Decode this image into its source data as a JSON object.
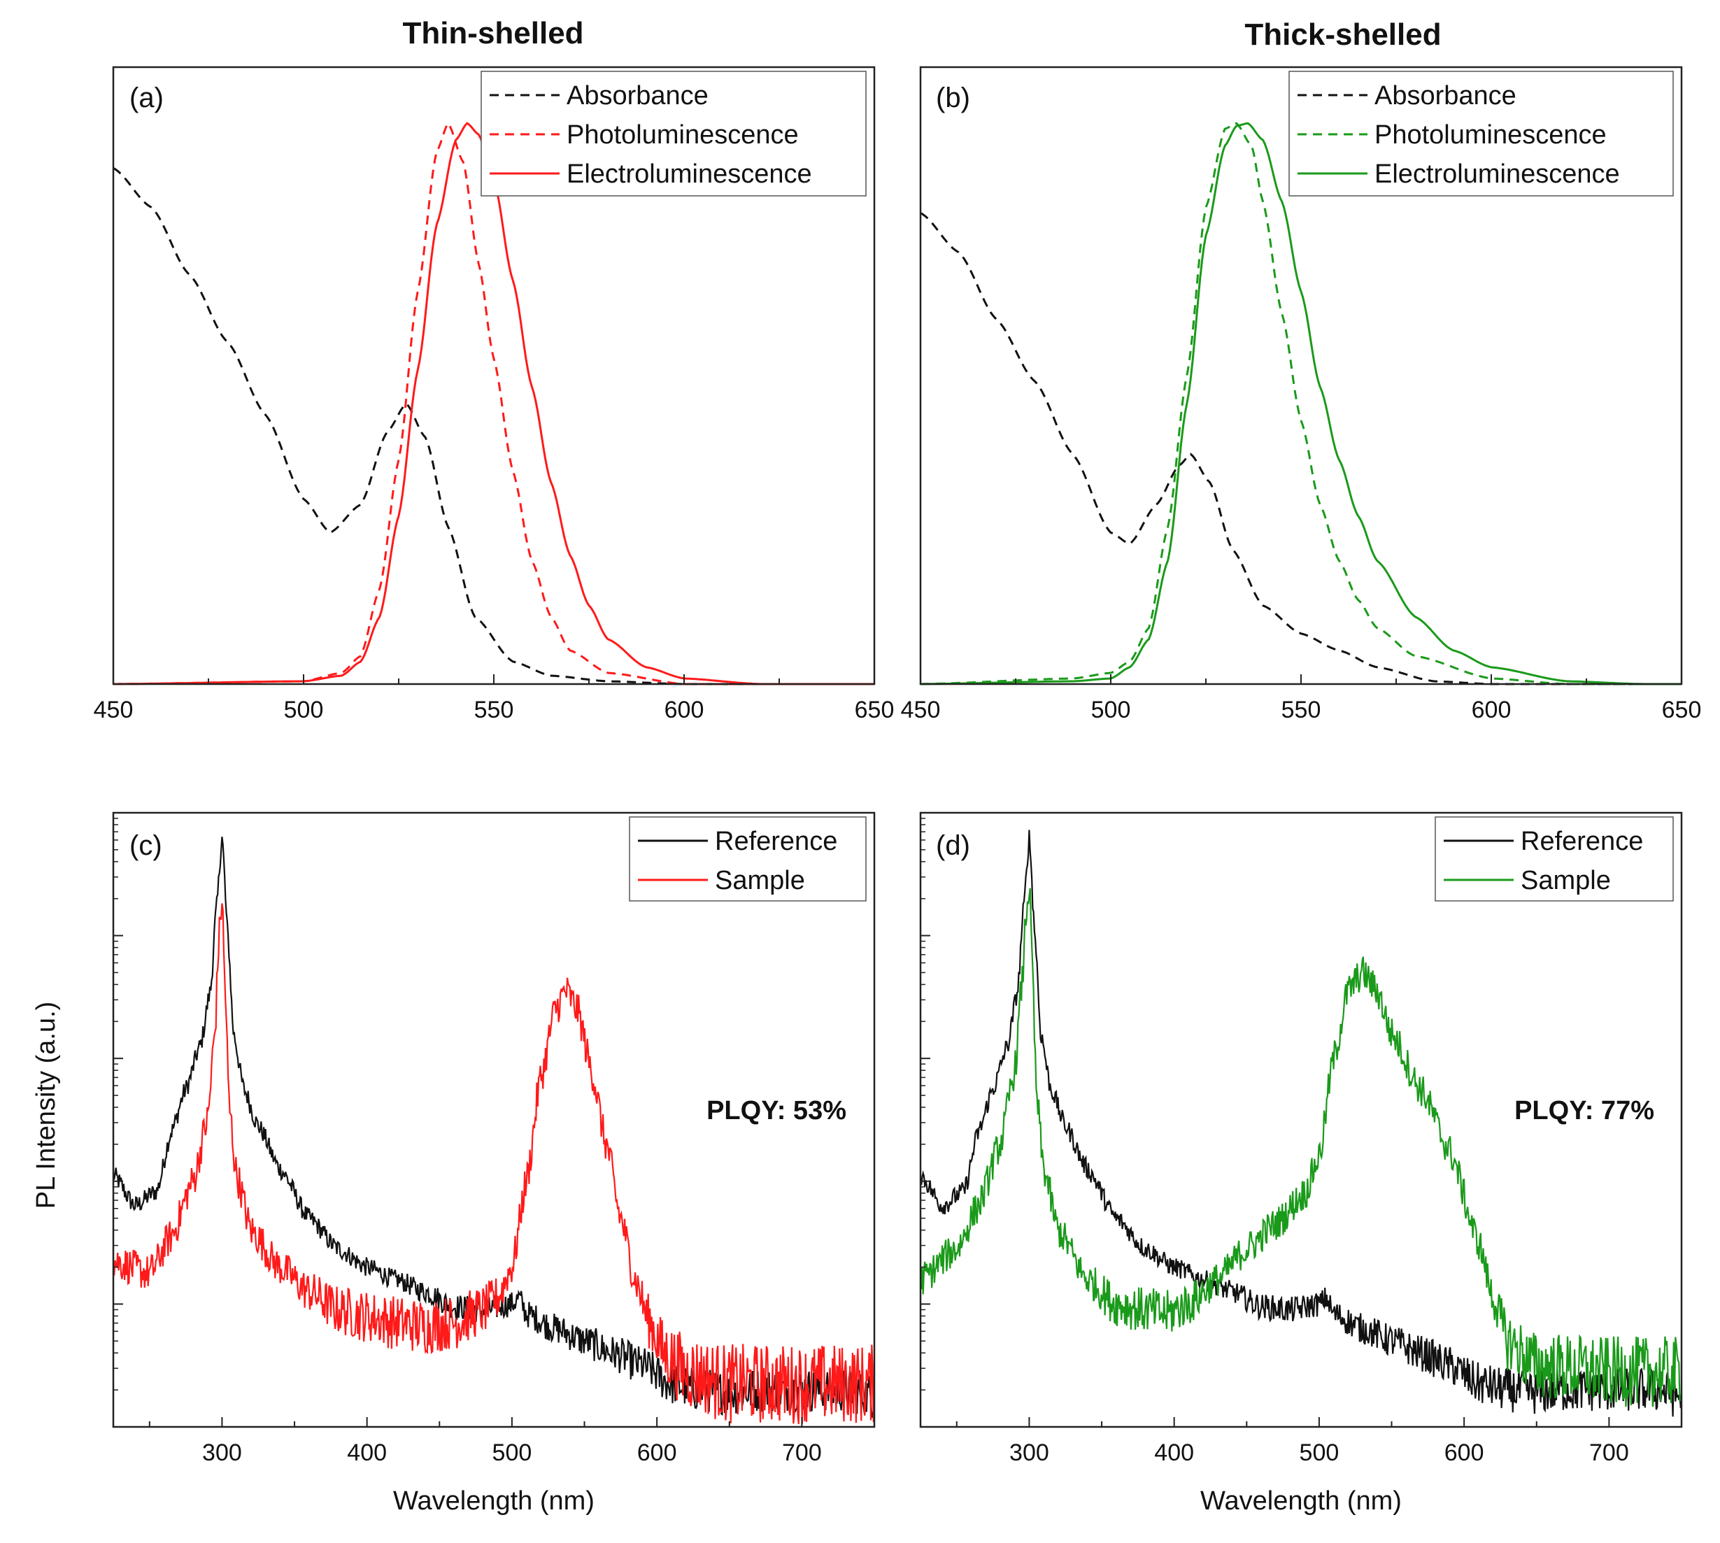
{
  "column_titles": [
    "Thin-shelled",
    "Thick-shelled"
  ],
  "y_axis_label": "PL Intensity (a.u.)",
  "colors": {
    "thin": "#ff1a1a",
    "thick": "#1a9a1a",
    "black": "#111111"
  },
  "chart_data": [
    {
      "panel": "(a)",
      "type": "line",
      "title": "Thin-shelled",
      "xlabel": "",
      "ylabel": "",
      "xlim": [
        450,
        650
      ],
      "ylim": [
        0,
        1.1
      ],
      "xticks": [
        450,
        500,
        550,
        600,
        650
      ],
      "xtick_labels": [
        "450",
        "500",
        "550",
        "600",
        "650"
      ],
      "legend": [
        "Absorbance",
        "Photoluminescence",
        "Electroluminescence"
      ],
      "series": [
        {
          "name": "Absorbance",
          "style": "dashed",
          "color": "#111111",
          "x": [
            450,
            460,
            470,
            480,
            490,
            500,
            507,
            515,
            522,
            527,
            532,
            538,
            545,
            555,
            565,
            580,
            600,
            620
          ],
          "y": [
            0.92,
            0.85,
            0.73,
            0.61,
            0.48,
            0.33,
            0.27,
            0.32,
            0.45,
            0.5,
            0.44,
            0.28,
            0.12,
            0.04,
            0.015,
            0.005,
            0.0,
            0.0
          ]
        },
        {
          "name": "Photoluminescence",
          "style": "dashed",
          "color": "#ff1a1a",
          "x": [
            450,
            500,
            510,
            515,
            520,
            525,
            530,
            535,
            538,
            542,
            546,
            550,
            555,
            560,
            565,
            570,
            580,
            600,
            620
          ],
          "y": [
            0.0,
            0.005,
            0.02,
            0.05,
            0.17,
            0.4,
            0.7,
            0.95,
            1.0,
            0.93,
            0.75,
            0.58,
            0.38,
            0.22,
            0.12,
            0.06,
            0.02,
            0.0,
            0.0
          ]
        },
        {
          "name": "Electroluminescence",
          "style": "solid",
          "color": "#ff1a1a",
          "x": [
            450,
            500,
            510,
            515,
            520,
            525,
            530,
            535,
            540,
            543,
            546,
            550,
            555,
            560,
            565,
            570,
            575,
            580,
            590,
            600,
            620
          ],
          "y": [
            0.0,
            0.005,
            0.015,
            0.04,
            0.12,
            0.3,
            0.56,
            0.82,
            0.97,
            1.0,
            0.98,
            0.9,
            0.72,
            0.53,
            0.36,
            0.23,
            0.14,
            0.08,
            0.03,
            0.01,
            0.0
          ]
        }
      ]
    },
    {
      "panel": "(b)",
      "type": "line",
      "title": "Thick-shelled",
      "xlabel": "",
      "ylabel": "",
      "xlim": [
        450,
        650
      ],
      "ylim": [
        0,
        1.1
      ],
      "xticks": [
        450,
        500,
        550,
        600,
        650
      ],
      "xtick_labels": [
        "450",
        "500",
        "550",
        "600",
        "650"
      ],
      "legend": [
        "Absorbance",
        "Photoluminescence",
        "Electroluminescence"
      ],
      "series": [
        {
          "name": "Absorbance",
          "style": "dashed",
          "color": "#111111",
          "x": [
            450,
            460,
            470,
            480,
            490,
            500,
            505,
            512,
            518,
            521,
            526,
            532,
            540,
            550,
            560,
            570,
            585,
            600
          ],
          "y": [
            0.84,
            0.77,
            0.65,
            0.54,
            0.41,
            0.27,
            0.25,
            0.32,
            0.39,
            0.41,
            0.36,
            0.24,
            0.14,
            0.09,
            0.06,
            0.03,
            0.005,
            0.0
          ]
        },
        {
          "name": "Photoluminescence",
          "style": "dashed",
          "color": "#1a9a1a",
          "x": [
            450,
            490,
            500,
            505,
            510,
            515,
            520,
            525,
            530,
            533,
            537,
            540,
            545,
            550,
            555,
            560,
            565,
            570,
            580,
            600,
            620
          ],
          "y": [
            0.0,
            0.01,
            0.02,
            0.04,
            0.1,
            0.28,
            0.55,
            0.85,
            0.99,
            1.0,
            0.96,
            0.86,
            0.66,
            0.47,
            0.32,
            0.22,
            0.15,
            0.1,
            0.05,
            0.01,
            0.0
          ]
        },
        {
          "name": "Electroluminescence",
          "style": "solid",
          "color": "#1a9a1a",
          "x": [
            450,
            490,
            500,
            505,
            510,
            515,
            520,
            525,
            530,
            533,
            536,
            540,
            545,
            550,
            555,
            560,
            565,
            570,
            580,
            590,
            600,
            620,
            640
          ],
          "y": [
            0.0,
            0.005,
            0.01,
            0.03,
            0.08,
            0.22,
            0.5,
            0.8,
            0.96,
            0.995,
            1.0,
            0.97,
            0.86,
            0.7,
            0.53,
            0.4,
            0.3,
            0.22,
            0.12,
            0.06,
            0.03,
            0.005,
            0.0
          ]
        }
      ]
    },
    {
      "panel": "(c)",
      "type": "line",
      "title": "",
      "xlabel": "Wavelength (nm)",
      "ylabel": "PL Intensity (a.u.)",
      "yscale": "log",
      "xlim": [
        225,
        750
      ],
      "ylim_log10": [
        0,
        5
      ],
      "xticks": [
        300,
        400,
        500,
        600,
        700
      ],
      "xtick_labels": [
        "300",
        "400",
        "500",
        "600",
        "700"
      ],
      "legend": [
        "Reference",
        "Sample"
      ],
      "annotation": "PLQY: 53%",
      "series": [
        {
          "name": "Reference",
          "style": "solid",
          "color": "#111111",
          "noise": 0.08,
          "x": [
            225,
            240,
            255,
            265,
            275,
            285,
            292,
            296,
            300,
            304,
            308,
            315,
            325,
            340,
            360,
            380,
            400,
            420,
            440,
            460,
            480,
            500,
            505,
            510,
            530,
            550,
            570,
            590,
            610,
            630,
            650,
            670,
            700,
            730,
            750
          ],
          "y": [
            2.05,
            1.8,
            1.92,
            2.4,
            2.75,
            3.1,
            3.55,
            4.2,
            4.8,
            4.0,
            3.2,
            2.75,
            2.45,
            2.1,
            1.7,
            1.45,
            1.3,
            1.2,
            1.1,
            0.98,
            0.95,
            1.0,
            1.05,
            0.92,
            0.8,
            0.7,
            0.6,
            0.5,
            0.35,
            0.3,
            0.28,
            0.3,
            0.3,
            0.3,
            0.25
          ]
        },
        {
          "name": "Sample",
          "style": "solid",
          "color": "#ff1a1a",
          "noise": 0.15,
          "x": [
            225,
            250,
            265,
            280,
            290,
            295,
            298,
            300,
            302,
            305,
            310,
            320,
            340,
            360,
            380,
            400,
            420,
            440,
            460,
            480,
            490,
            500,
            510,
            520,
            530,
            537,
            545,
            555,
            565,
            575,
            585,
            595,
            605,
            620,
            650,
            700,
            750
          ],
          "y": [
            1.35,
            1.25,
            1.55,
            2.0,
            2.5,
            3.2,
            4.0,
            4.3,
            3.6,
            2.6,
            2.05,
            1.6,
            1.3,
            1.1,
            0.95,
            0.9,
            0.85,
            0.82,
            0.85,
            0.95,
            1.05,
            1.3,
            2.0,
            2.85,
            3.4,
            3.55,
            3.4,
            2.9,
            2.3,
            1.7,
            1.2,
            0.85,
            0.6,
            0.45,
            0.35,
            0.35,
            0.35
          ]
        }
      ]
    },
    {
      "panel": "(d)",
      "type": "line",
      "title": "",
      "xlabel": "Wavelength (nm)",
      "ylabel": "",
      "yscale": "log",
      "xlim": [
        225,
        750
      ],
      "ylim_log10": [
        0,
        5
      ],
      "xticks": [
        300,
        400,
        500,
        600,
        700
      ],
      "xtick_labels": [
        "300",
        "400",
        "500",
        "600",
        "700"
      ],
      "legend": [
        "Reference",
        "Sample"
      ],
      "annotation": "PLQY: 77%",
      "series": [
        {
          "name": "Reference",
          "style": "solid",
          "color": "#111111",
          "noise": 0.08,
          "x": [
            225,
            240,
            255,
            265,
            275,
            285,
            292,
            296,
            300,
            304,
            308,
            315,
            325,
            340,
            360,
            380,
            400,
            420,
            440,
            460,
            480,
            500,
            505,
            510,
            530,
            550,
            570,
            590,
            610,
            630,
            650,
            670,
            700,
            730,
            750
          ],
          "y": [
            2.05,
            1.8,
            1.92,
            2.4,
            2.75,
            3.1,
            3.55,
            4.2,
            4.8,
            4.0,
            3.2,
            2.75,
            2.45,
            2.1,
            1.7,
            1.45,
            1.3,
            1.2,
            1.1,
            0.98,
            0.95,
            1.0,
            1.05,
            0.92,
            0.8,
            0.7,
            0.6,
            0.5,
            0.35,
            0.3,
            0.28,
            0.3,
            0.3,
            0.3,
            0.25
          ]
        },
        {
          "name": "Sample",
          "style": "solid",
          "color": "#1a9a1a",
          "noise": 0.14,
          "x": [
            225,
            250,
            265,
            280,
            290,
            295,
            298,
            300,
            302,
            305,
            310,
            320,
            340,
            360,
            380,
            395,
            410,
            430,
            450,
            470,
            490,
            500,
            510,
            520,
            530,
            540,
            550,
            570,
            590,
            610,
            620,
            630,
            650,
            700,
            750
          ],
          "y": [
            1.2,
            1.45,
            1.8,
            2.3,
            2.9,
            3.6,
            4.2,
            4.4,
            3.8,
            2.7,
            2.1,
            1.6,
            1.2,
            1.0,
            0.95,
            0.92,
            1.0,
            1.2,
            1.45,
            1.65,
            1.9,
            2.2,
            3.0,
            3.55,
            3.7,
            3.55,
            3.2,
            2.75,
            2.25,
            1.5,
            1.05,
            0.7,
            0.5,
            0.45,
            0.45
          ]
        }
      ]
    }
  ]
}
